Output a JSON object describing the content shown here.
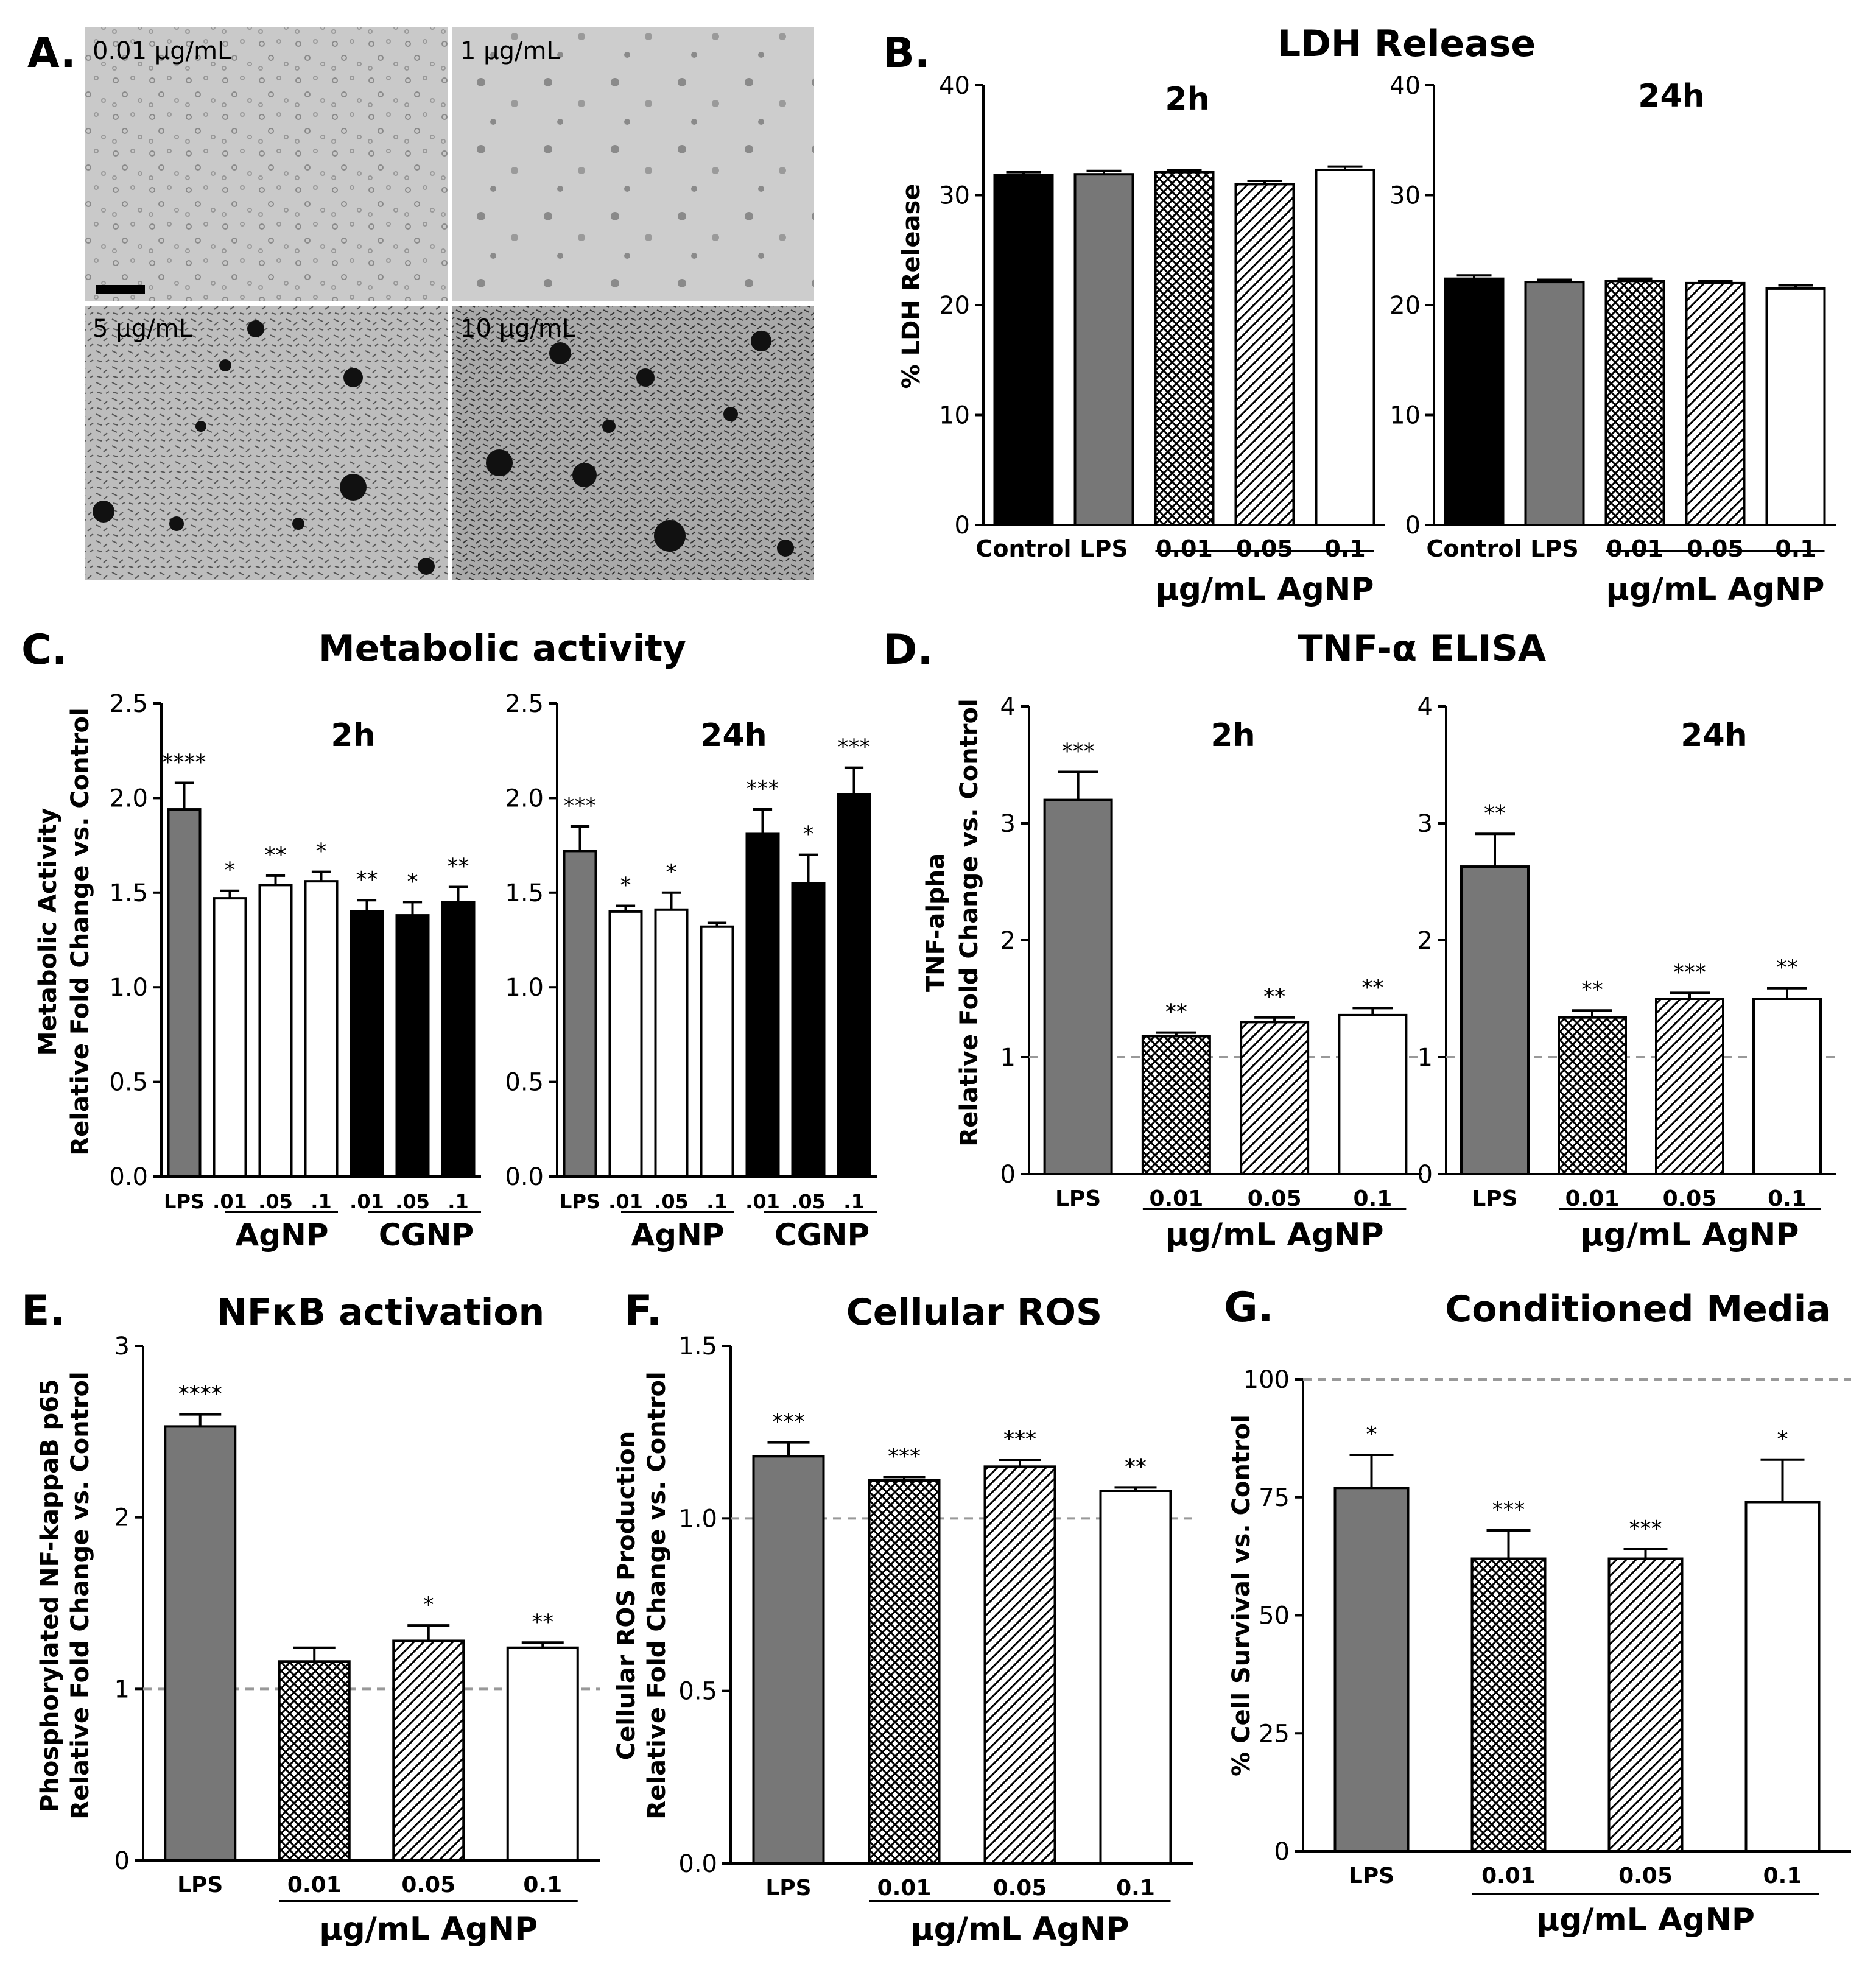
{
  "panel_letters": {
    "a": "A.",
    "b": "B.",
    "c": "C.",
    "d": "D.",
    "e": "E.",
    "f": "F.",
    "g": "G."
  },
  "micrographs": [
    "0.01 µg/mL",
    "1 µg/mL",
    "5 µg/mL",
    "10 µg/mL"
  ],
  "group_titles": {
    "ldh": "LDH Release",
    "metabolic": "Metabolic activity",
    "tnf": "TNF-α ELISA"
  },
  "axis_labels": {
    "ldh_y": "% LDH Release",
    "met_y1": "Metabolic Activity",
    "met_y2": "Relative Fold Change vs. Control",
    "tnf_y1": "TNF-alpha",
    "tnf_y2": "Relative Fold Change vs. Control",
    "nfkb_y1": "Phosphorylated NF-kappaB p65",
    "nfkb_y2": "Relative Fold Change vs. Control",
    "ros_y1": "Cellular ROS Production",
    "ros_y2": "Relative Fold Change vs. Control",
    "cm_y": "% Cell Survival vs. Control"
  },
  "group_labels": {
    "agnp": "µg/mL AgNP",
    "agnp_short": "AgNP",
    "cgnp": "CGNP"
  },
  "colors": {
    "dark": "#000000",
    "gray": "#777777",
    "white": "#ffffff",
    "ref": "#999999"
  },
  "chart_data": [
    {
      "id": "B-2h",
      "type": "bar",
      "group": "ldh",
      "title": "2h",
      "ylabel": "% LDH Release",
      "ylim": [
        0,
        40
      ],
      "yticks": [
        0,
        10,
        20,
        30,
        40
      ],
      "categories": [
        "Control",
        "LPS",
        "0.01",
        "0.05",
        "0.1"
      ],
      "values": [
        31.8,
        31.9,
        32.1,
        31.0,
        32.3
      ],
      "errors": [
        0.3,
        0.3,
        0.2,
        0.3,
        0.3
      ],
      "fills": [
        "black",
        "gray",
        "cross",
        "diag",
        "white"
      ],
      "sig": [
        "",
        "",
        "",
        "",
        ""
      ],
      "group_label": "µg/mL AgNP",
      "group_range": [
        2,
        4
      ]
    },
    {
      "id": "B-24h",
      "type": "bar",
      "group": "ldh",
      "title": "24h",
      "ylabel": "",
      "ylim": [
        0,
        40
      ],
      "yticks": [
        0,
        10,
        20,
        30,
        40
      ],
      "categories": [
        "Control",
        "LPS",
        "0.01",
        "0.05",
        "0.1"
      ],
      "values": [
        22.4,
        22.1,
        22.2,
        22.0,
        21.5
      ],
      "errors": [
        0.3,
        0.2,
        0.2,
        0.2,
        0.3
      ],
      "fills": [
        "black",
        "gray",
        "cross",
        "diag",
        "white"
      ],
      "sig": [
        "",
        "",
        "",
        "",
        ""
      ],
      "group_label": "µg/mL AgNP",
      "group_range": [
        2,
        4
      ]
    },
    {
      "id": "C-2h",
      "type": "bar",
      "group": "metabolic",
      "title": "2h",
      "ylabel": "Metabolic Activity / Relative Fold Change vs. Control",
      "ylim": [
        0,
        2.5
      ],
      "yticks": [
        0.0,
        0.5,
        1.0,
        1.5,
        2.0,
        2.5
      ],
      "categories": [
        "LPS",
        ".01",
        ".05",
        ".1",
        ".01",
        ".05",
        ".1"
      ],
      "values": [
        1.94,
        1.47,
        1.54,
        1.56,
        1.4,
        1.38,
        1.45
      ],
      "errors": [
        0.14,
        0.04,
        0.05,
        0.05,
        0.06,
        0.07,
        0.08
      ],
      "fills": [
        "gray",
        "white",
        "white",
        "white",
        "black",
        "black",
        "black"
      ],
      "sig": [
        "****",
        "*",
        "**",
        "*",
        "**",
        "*",
        "**"
      ]
    },
    {
      "id": "C-24h",
      "type": "bar",
      "group": "metabolic",
      "title": "24h",
      "ylabel": "",
      "ylim": [
        0,
        2.5
      ],
      "yticks": [
        0.0,
        0.5,
        1.0,
        1.5,
        2.0,
        2.5
      ],
      "categories": [
        "LPS",
        ".01",
        ".05",
        ".1",
        ".01",
        ".05",
        ".1"
      ],
      "values": [
        1.72,
        1.4,
        1.41,
        1.32,
        1.81,
        1.55,
        2.02
      ],
      "errors": [
        0.13,
        0.03,
        0.09,
        0.02,
        0.13,
        0.15,
        0.14
      ],
      "fills": [
        "gray",
        "white",
        "white",
        "white",
        "black",
        "black",
        "black"
      ],
      "sig": [
        "***",
        "*",
        "*",
        "",
        "***",
        "*",
        "***"
      ]
    },
    {
      "id": "D-2h",
      "type": "bar",
      "group": "tnf",
      "title": "2h",
      "ylabel": "TNF-alpha / Relative Fold Change vs. Control",
      "ylim": [
        0,
        4
      ],
      "yticks": [
        0,
        1,
        2,
        3,
        4
      ],
      "categories": [
        "LPS",
        "0.01",
        "0.05",
        "0.1"
      ],
      "values": [
        3.2,
        1.18,
        1.3,
        1.36
      ],
      "errors": [
        0.24,
        0.03,
        0.04,
        0.06
      ],
      "fills": [
        "gray",
        "cross",
        "diag",
        "white"
      ],
      "sig": [
        "***",
        "**",
        "**",
        "**"
      ],
      "ref": 1,
      "group_label": "µg/mL AgNP",
      "group_range": [
        1,
        3
      ]
    },
    {
      "id": "D-24h",
      "type": "bar",
      "group": "tnf",
      "title": "24h",
      "ylabel": "",
      "ylim": [
        0,
        4
      ],
      "yticks": [
        0,
        1,
        2,
        3,
        4
      ],
      "categories": [
        "LPS",
        "0.01",
        "0.05",
        "0.1"
      ],
      "values": [
        2.63,
        1.34,
        1.5,
        1.5
      ],
      "errors": [
        0.28,
        0.06,
        0.05,
        0.09
      ],
      "fills": [
        "gray",
        "cross",
        "diag",
        "white"
      ],
      "sig": [
        "**",
        "**",
        "***",
        "**"
      ],
      "ref": 1,
      "group_label": "µg/mL AgNP",
      "group_range": [
        1,
        3
      ]
    },
    {
      "id": "E",
      "type": "bar",
      "title": "NFκB activation",
      "ylabel": "Phosphorylated NF-kappaB p65 / Relative Fold Change vs. Control",
      "ylim": [
        0,
        3
      ],
      "yticks": [
        0,
        1,
        2,
        3
      ],
      "categories": [
        "LPS",
        "0.01",
        "0.05",
        "0.1"
      ],
      "values": [
        2.53,
        1.16,
        1.28,
        1.24
      ],
      "errors": [
        0.07,
        0.08,
        0.09,
        0.03
      ],
      "fills": [
        "gray",
        "cross",
        "diag",
        "white"
      ],
      "sig": [
        "****",
        "",
        "*",
        "**"
      ],
      "ref": 1,
      "group_label": "µg/mL AgNP",
      "group_range": [
        1,
        3
      ]
    },
    {
      "id": "F",
      "type": "bar",
      "title": "Cellular ROS",
      "ylabel": "Cellular ROS Production / Relative Fold Change vs. Control",
      "ylim": [
        0,
        1.5
      ],
      "yticks": [
        0.0,
        0.5,
        1.0,
        1.5
      ],
      "categories": [
        "LPS",
        "0.01",
        "0.05",
        "0.1"
      ],
      "values": [
        1.18,
        1.11,
        1.15,
        1.08
      ],
      "errors": [
        0.04,
        0.01,
        0.02,
        0.01
      ],
      "fills": [
        "gray",
        "cross",
        "diag",
        "white"
      ],
      "sig": [
        "***",
        "***",
        "***",
        "**"
      ],
      "ref": 1.0,
      "group_label": "µg/mL AgNP",
      "group_range": [
        1,
        3
      ]
    },
    {
      "id": "G",
      "type": "bar",
      "title": "Conditioned Media",
      "ylabel": "% Cell Survival vs. Control",
      "ylim": [
        0,
        100
      ],
      "yticks": [
        0,
        25,
        50,
        75,
        100
      ],
      "categories": [
        "LPS",
        "0.01",
        "0.05",
        "0.1"
      ],
      "values": [
        77,
        62,
        62,
        74
      ],
      "errors": [
        7,
        6,
        2,
        9
      ],
      "fills": [
        "gray",
        "cross",
        "diag",
        "white"
      ],
      "sig": [
        "*",
        "***",
        "***",
        "*"
      ],
      "ref": 100,
      "group_label": "µg/mL AgNP",
      "group_range": [
        1,
        3
      ]
    }
  ]
}
